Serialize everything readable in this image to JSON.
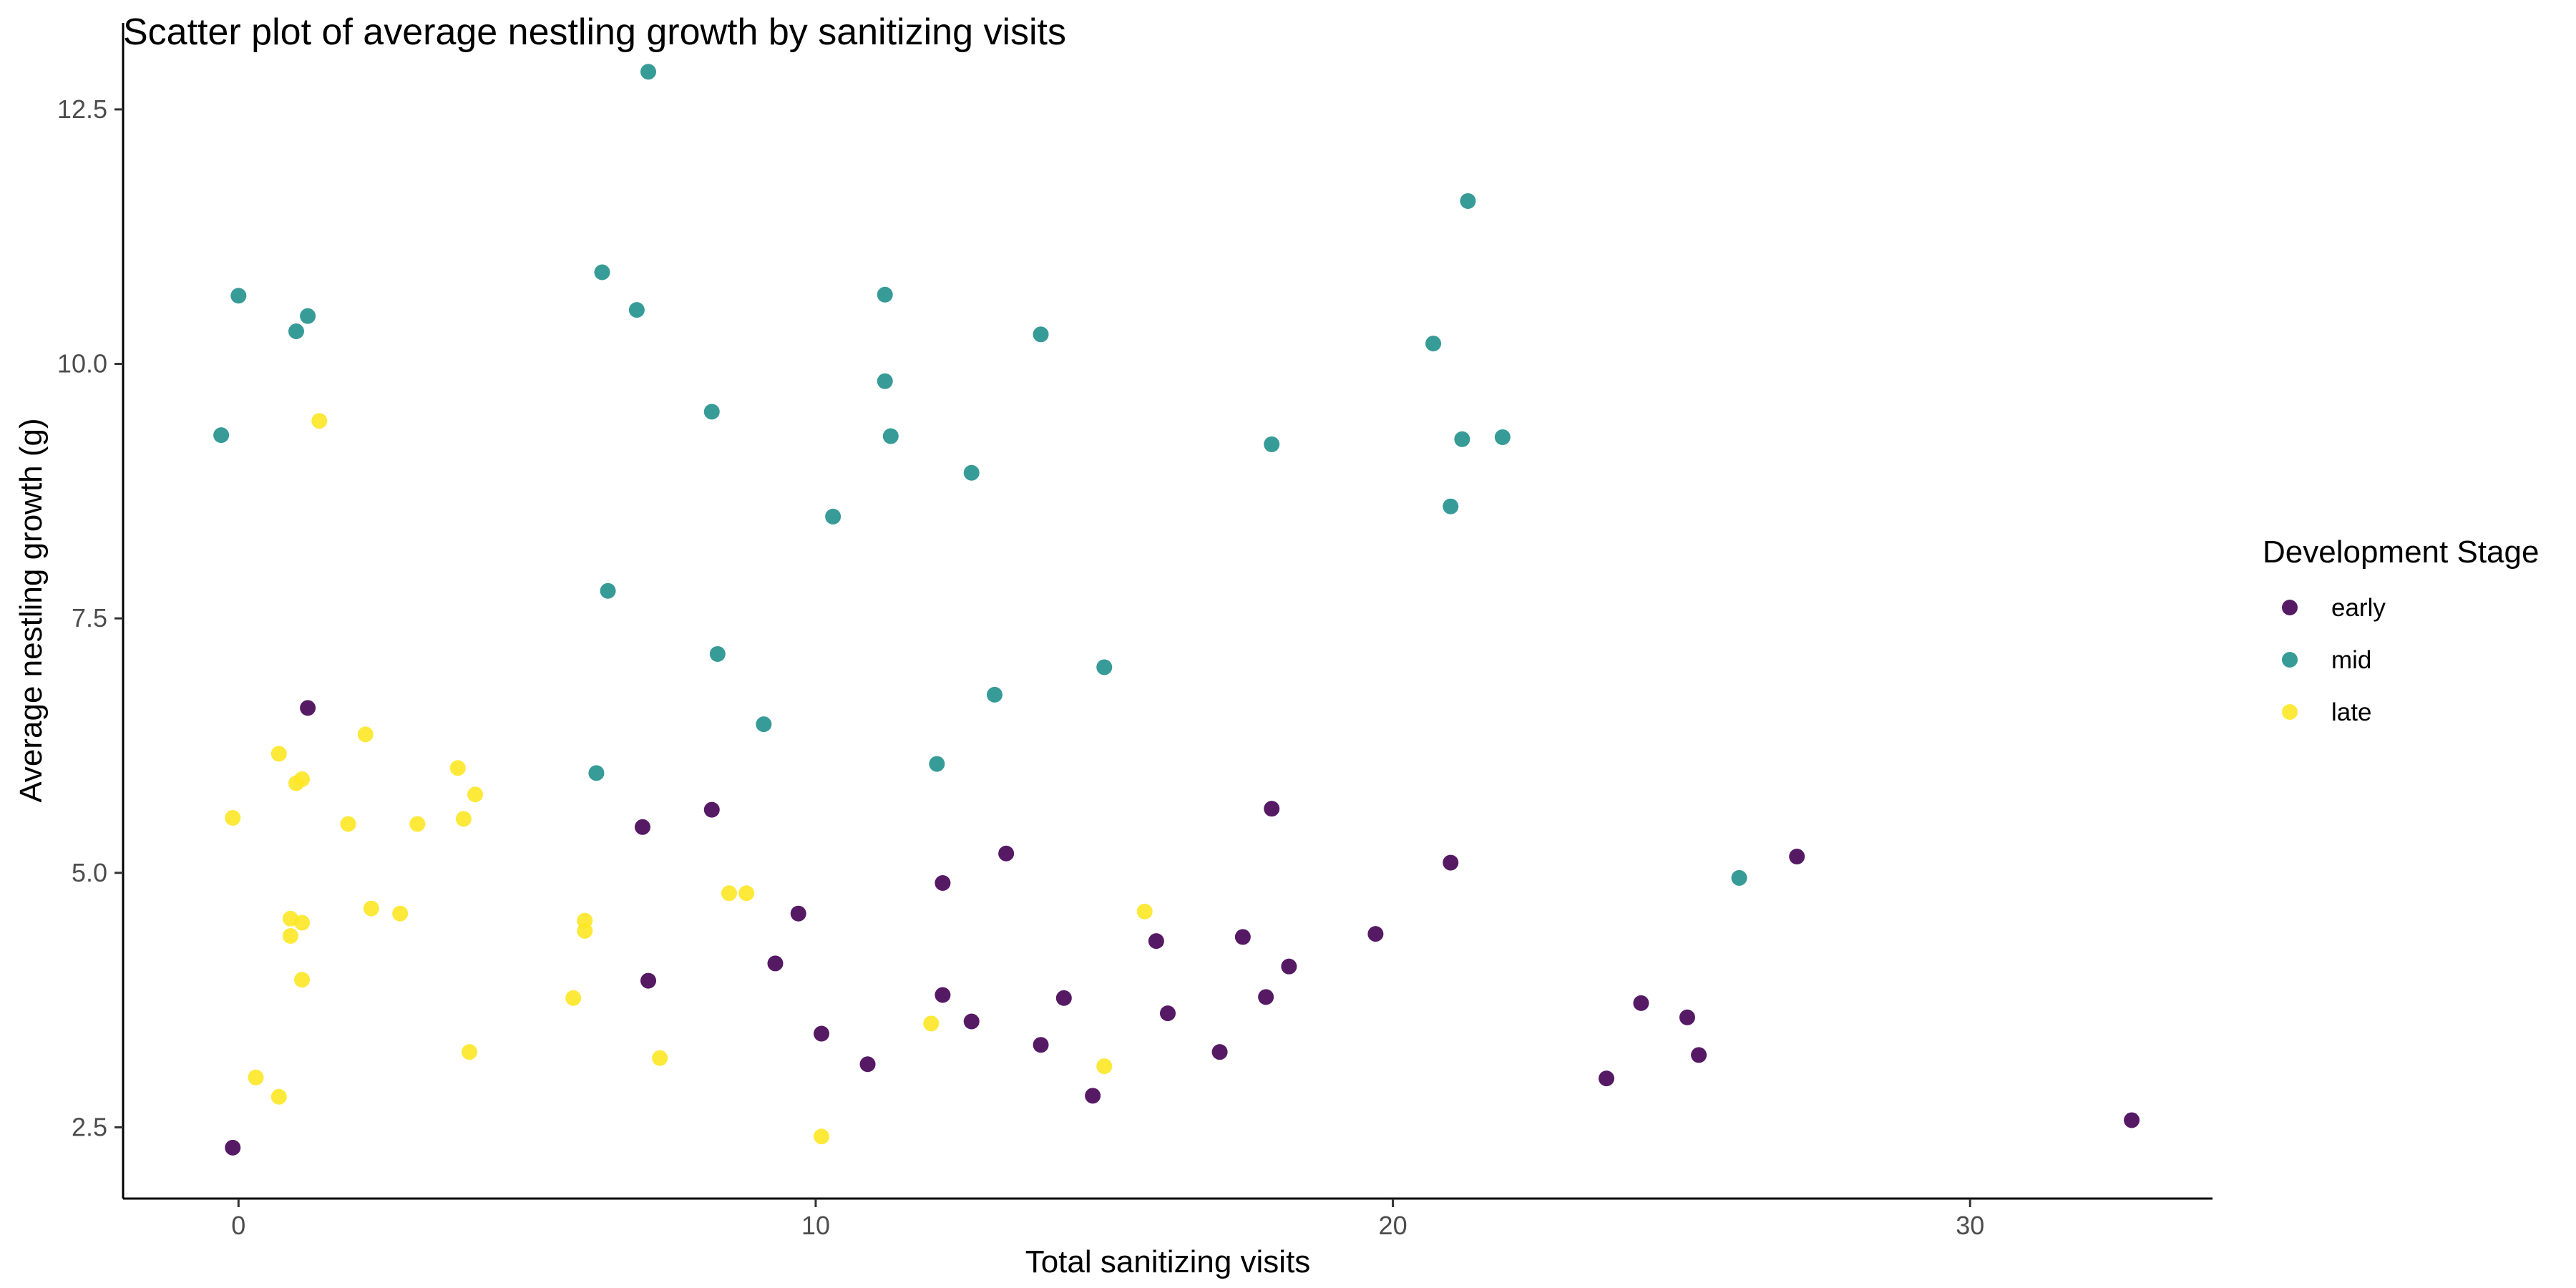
{
  "chart_data": {
    "type": "scatter",
    "title": "Scatter plot of average nestling growth by sanitizing visits",
    "xlabel": "Total sanitizing visits",
    "ylabel": "Average nestling growth (g)",
    "xlim": [
      -2,
      34.2
    ],
    "ylim": [
      1.8,
      13.35
    ],
    "x_ticks": [
      0,
      10,
      20,
      30
    ],
    "x_tick_labels": [
      "0",
      "10",
      "20",
      "30"
    ],
    "y_ticks": [
      2.5,
      5.0,
      7.5,
      10.0,
      12.5
    ],
    "y_tick_labels": [
      "2.5",
      "5.0",
      "7.5",
      "10.0",
      "12.5"
    ],
    "grid": false,
    "legend": {
      "title": "Development Stage",
      "position": "right"
    },
    "series": [
      {
        "name": "early",
        "color": "#440154",
        "points": [
          [
            -0.1,
            2.3
          ],
          [
            1.2,
            6.62
          ],
          [
            7.0,
            5.45
          ],
          [
            7.1,
            3.94
          ],
          [
            8.2,
            5.62
          ],
          [
            9.3,
            4.11
          ],
          [
            9.7,
            4.6
          ],
          [
            10.1,
            3.42
          ],
          [
            10.9,
            3.12
          ],
          [
            12.2,
            4.9
          ],
          [
            12.2,
            3.8
          ],
          [
            12.7,
            3.54
          ],
          [
            13.3,
            5.19
          ],
          [
            13.9,
            3.31
          ],
          [
            14.3,
            3.77
          ],
          [
            14.8,
            2.81
          ],
          [
            15.9,
            4.33
          ],
          [
            16.1,
            3.62
          ],
          [
            17.0,
            3.24
          ],
          [
            17.4,
            4.37
          ],
          [
            17.8,
            3.78
          ],
          [
            17.9,
            5.63
          ],
          [
            18.2,
            4.08
          ],
          [
            19.7,
            4.4
          ],
          [
            21.0,
            5.1
          ],
          [
            23.7,
            2.98
          ],
          [
            24.3,
            3.72
          ],
          [
            25.1,
            3.58
          ],
          [
            25.3,
            3.21
          ],
          [
            27.0,
            5.16
          ],
          [
            32.8,
            2.57
          ]
        ]
      },
      {
        "name": "mid",
        "color": "#21908C",
        "points": [
          [
            -0.3,
            9.3
          ],
          [
            0.0,
            10.67
          ],
          [
            1.0,
            10.32
          ],
          [
            1.2,
            10.47
          ],
          [
            6.2,
            5.98
          ],
          [
            6.3,
            10.9
          ],
          [
            6.4,
            7.77
          ],
          [
            6.9,
            10.53
          ],
          [
            7.1,
            12.87
          ],
          [
            8.2,
            9.53
          ],
          [
            8.3,
            7.15
          ],
          [
            9.1,
            6.46
          ],
          [
            10.3,
            8.5
          ],
          [
            11.2,
            10.68
          ],
          [
            11.2,
            9.83
          ],
          [
            11.3,
            9.29
          ],
          [
            12.1,
            6.07
          ],
          [
            12.7,
            8.93
          ],
          [
            13.1,
            6.75
          ],
          [
            13.9,
            10.29
          ],
          [
            15.0,
            7.02
          ],
          [
            17.9,
            9.21
          ],
          [
            20.7,
            10.2
          ],
          [
            21.0,
            8.6
          ],
          [
            21.2,
            9.26
          ],
          [
            21.3,
            11.6
          ],
          [
            21.9,
            9.28
          ],
          [
            26.0,
            4.95
          ]
        ]
      },
      {
        "name": "late",
        "color": "#FDE725",
        "points": [
          [
            -0.1,
            5.54
          ],
          [
            0.3,
            2.99
          ],
          [
            0.7,
            6.17
          ],
          [
            0.7,
            2.8
          ],
          [
            0.9,
            4.55
          ],
          [
            0.9,
            4.38
          ],
          [
            1.0,
            5.88
          ],
          [
            1.1,
            5.92
          ],
          [
            1.1,
            3.95
          ],
          [
            1.1,
            4.51
          ],
          [
            1.4,
            9.44
          ],
          [
            1.9,
            5.48
          ],
          [
            2.2,
            6.36
          ],
          [
            2.3,
            4.65
          ],
          [
            2.8,
            4.6
          ],
          [
            3.1,
            5.48
          ],
          [
            3.8,
            6.03
          ],
          [
            3.9,
            5.53
          ],
          [
            4.0,
            3.24
          ],
          [
            4.1,
            5.77
          ],
          [
            5.8,
            3.77
          ],
          [
            6.0,
            4.53
          ],
          [
            6.0,
            4.43
          ],
          [
            7.3,
            3.18
          ],
          [
            8.5,
            4.8
          ],
          [
            8.8,
            4.8
          ],
          [
            10.1,
            2.41
          ],
          [
            12.0,
            3.52
          ],
          [
            15.0,
            3.1
          ],
          [
            15.7,
            4.62
          ]
        ]
      }
    ]
  }
}
